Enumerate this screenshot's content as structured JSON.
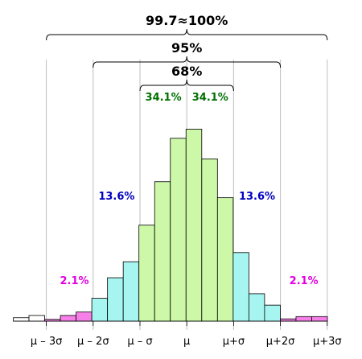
{
  "chart_data": {
    "type": "bar",
    "title": "",
    "xlabel": "",
    "ylabel": "",
    "ylim": [
      0,
      100
    ],
    "x_domain": [
      -4,
      3.5
    ],
    "bin_width": 0.5,
    "bins": [
      {
        "start": -4.0,
        "value": 1.5,
        "color": "#ffffff"
      },
      {
        "start": -3.5,
        "value": 2.5,
        "color": "#ffffff"
      },
      {
        "start": -3.0,
        "value": 0.8,
        "color": "#f780e8"
      },
      {
        "start": -2.5,
        "value": 2.5,
        "color": "#f780e8"
      },
      {
        "start": -2.0,
        "value": 4.0,
        "color": "#f780e8"
      },
      {
        "start": -1.5,
        "value": 10.0,
        "color": "#a6f5f0"
      },
      {
        "start": -1.0,
        "value": 19.0,
        "color": "#a6f5f0"
      },
      {
        "start": -0.5,
        "value": 26.0,
        "color": "#a6f5f0"
      },
      {
        "start": 0.0,
        "value": 42.0,
        "color": "#ccf8a8"
      },
      {
        "start": 0.5,
        "value": 61.0,
        "color": "#ccf8a8"
      },
      {
        "start": 1.0,
        "value": 80.0,
        "color": "#ccf8a8"
      },
      {
        "start": 1.5,
        "value": 84.0,
        "color": "#ccf8a8"
      },
      {
        "start": 2.0,
        "value": 71.0,
        "color": "#ccf8a8"
      },
      {
        "start": 2.5,
        "value": 54.0,
        "color": "#ccf8a8"
      },
      {
        "start": 3.0,
        "value": 30.0,
        "color": "#a6f5f0"
      },
      {
        "start": 3.5,
        "value": 12.0,
        "color": "#a6f5f0"
      },
      {
        "start": 4.0,
        "value": 7.0,
        "color": "#a6f5f0"
      },
      {
        "start": 4.5,
        "value": 1.0,
        "color": "#f780e8"
      },
      {
        "start": 5.0,
        "value": 2.0,
        "color": "#f780e8"
      },
      {
        "start": 5.5,
        "value": 2.0,
        "color": "#f780e8"
      }
    ],
    "tick_labels": [
      {
        "at": -3.0,
        "label": "μ – 3σ"
      },
      {
        "at": -2.0,
        "label": "μ – 2σ"
      },
      {
        "at": -1.0,
        "label": "μ – σ"
      },
      {
        "at": 0.0,
        "label": "μ"
      },
      {
        "at": 1.0,
        "label": "μ+σ"
      },
      {
        "at": 2.0,
        "label": "μ+2σ"
      },
      {
        "at": 3.0,
        "label": "μ+3σ"
      }
    ],
    "region_labels": [
      {
        "at": -2.4,
        "label": "2.1%",
        "color": "#e000e0"
      },
      {
        "at": -1.5,
        "label": "13.6%",
        "color": "#0000c0"
      },
      {
        "at": -0.5,
        "label": "34.1%",
        "color": "#007000"
      },
      {
        "at": 0.5,
        "label": "34.1%",
        "color": "#007000"
      },
      {
        "at": 1.5,
        "label": "13.6%",
        "color": "#0000c0"
      },
      {
        "at": 2.5,
        "label": "2.1%",
        "color": "#e000e0"
      }
    ],
    "braces": [
      {
        "from": -1.0,
        "to": 1.0,
        "label": "68%"
      },
      {
        "from": -2.0,
        "to": 2.0,
        "label": "95%"
      },
      {
        "from": -3.0,
        "to": 3.0,
        "label": "99.7≈100%"
      }
    ]
  }
}
